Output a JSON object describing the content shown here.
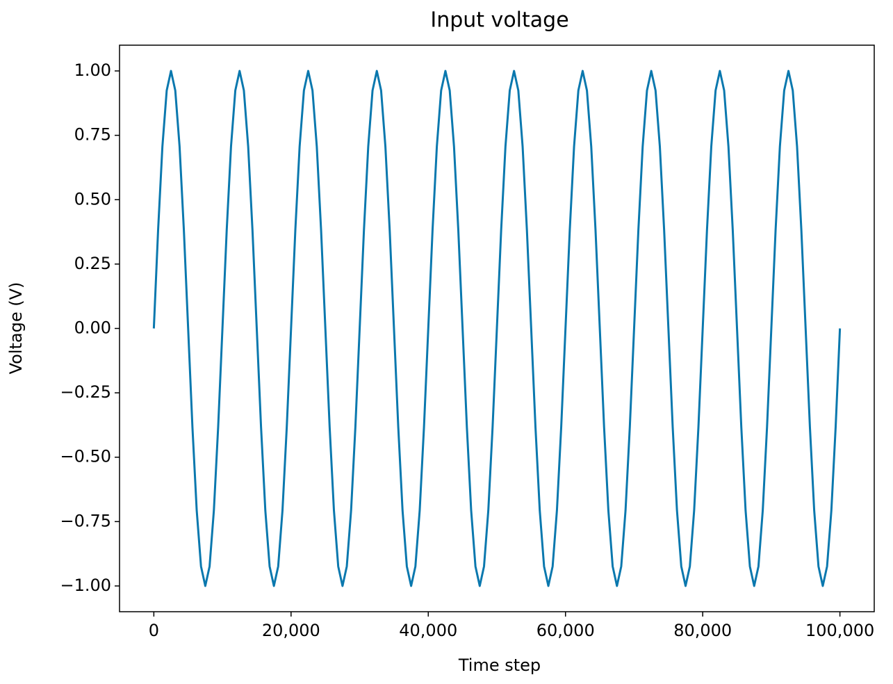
{
  "chart_data": {
    "type": "line",
    "title": "Input voltage",
    "x_label": "Time step",
    "y_label": "Voltage (V)",
    "color": "#0a78ae",
    "x": [
      0,
      625,
      1250,
      1875,
      2500,
      3125,
      3750,
      4375,
      5000,
      5625,
      6250,
      6875,
      7500,
      8125,
      8750,
      9375,
      10000,
      10625,
      11250,
      11875,
      12500,
      13125,
      13750,
      14375,
      15000,
      15625,
      16250,
      16875,
      17500,
      18125,
      18750,
      19375,
      20000,
      20625,
      21250,
      21875,
      22500,
      23125,
      23750,
      24375,
      25000,
      25625,
      26250,
      26875,
      27500,
      28125,
      28750,
      29375,
      30000,
      30625,
      31250,
      31875,
      32500,
      33125,
      33750,
      34375,
      35000,
      35625,
      36250,
      36875,
      37500,
      38125,
      38750,
      39375,
      40000,
      40625,
      41250,
      41875,
      42500,
      43125,
      43750,
      44375,
      45000,
      45625,
      46250,
      46875,
      47500,
      48125,
      48750,
      49375,
      50000,
      50625,
      51250,
      51875,
      52500,
      53125,
      53750,
      54375,
      55000,
      55625,
      56250,
      56875,
      57500,
      58125,
      58750,
      59375,
      60000,
      60625,
      61250,
      61875,
      62500,
      63125,
      63750,
      64375,
      65000,
      65625,
      66250,
      66875,
      67500,
      68125,
      68750,
      69375,
      70000,
      70625,
      71250,
      71875,
      72500,
      73125,
      73750,
      74375,
      75000,
      75625,
      76250,
      76875,
      77500,
      78125,
      78750,
      79375,
      80000,
      80625,
      81250,
      81875,
      82500,
      83125,
      83750,
      84375,
      85000,
      85625,
      86250,
      86875,
      87500,
      88125,
      88750,
      89375,
      90000,
      90625,
      91250,
      91875,
      92500,
      93125,
      93750,
      94375,
      95000,
      95625,
      96250,
      96875,
      97500,
      98125,
      98750,
      99375,
      100000
    ],
    "values": [
      0,
      0.383,
      0.707,
      0.924,
      1,
      0.924,
      0.707,
      0.383,
      0,
      -0.383,
      -0.707,
      -0.924,
      -1,
      -0.924,
      -0.707,
      -0.383,
      0,
      0.383,
      0.707,
      0.924,
      1,
      0.924,
      0.707,
      0.383,
      0,
      -0.383,
      -0.707,
      -0.924,
      -1,
      -0.924,
      -0.707,
      -0.383,
      0,
      0.383,
      0.707,
      0.924,
      1,
      0.924,
      0.707,
      0.383,
      0,
      -0.383,
      -0.707,
      -0.924,
      -1,
      -0.924,
      -0.707,
      -0.383,
      0,
      0.383,
      0.707,
      0.924,
      1,
      0.924,
      0.707,
      0.383,
      0,
      -0.383,
      -0.707,
      -0.924,
      -1,
      -0.924,
      -0.707,
      -0.383,
      0,
      0.383,
      0.707,
      0.924,
      1,
      0.924,
      0.707,
      0.383,
      0,
      -0.383,
      -0.707,
      -0.924,
      -1,
      -0.924,
      -0.707,
      -0.383,
      0,
      0.383,
      0.707,
      0.924,
      1,
      0.924,
      0.707,
      0.383,
      0,
      -0.383,
      -0.707,
      -0.924,
      -1,
      -0.924,
      -0.707,
      -0.383,
      0,
      0.383,
      0.707,
      0.924,
      1,
      0.924,
      0.707,
      0.383,
      0,
      -0.383,
      -0.707,
      -0.924,
      -1,
      -0.924,
      -0.707,
      -0.383,
      0,
      0.383,
      0.707,
      0.924,
      1,
      0.924,
      0.707,
      0.383,
      0,
      -0.383,
      -0.707,
      -0.924,
      -1,
      -0.924,
      -0.707,
      -0.383,
      0,
      0.383,
      0.707,
      0.924,
      1,
      0.924,
      0.707,
      0.383,
      0,
      -0.383,
      -0.707,
      -0.924,
      -1,
      -0.924,
      -0.707,
      -0.383,
      0,
      0.383,
      0.707,
      0.924,
      1,
      0.924,
      0.707,
      0.383,
      0,
      -0.383,
      -0.707,
      -0.924,
      -1,
      -0.924,
      -0.707,
      -0.383,
      0
    ],
    "xlim": [
      -5000,
      105000
    ],
    "xticks": [
      0,
      {
        "value": 20000,
        "label": "20,000"
      },
      {
        "value": 40000,
        "label": "40,000"
      },
      {
        "value": 60000,
        "label": "60,000"
      },
      {
        "value": 80000,
        "label": "80,000"
      },
      {
        "value": 100000,
        "label": "100,000"
      }
    ],
    "ylim": [
      -1.1,
      1.1
    ],
    "yticks": [
      {
        "value": -1,
        "label": "−1.00"
      },
      {
        "value": -0.75,
        "label": "−0.75"
      },
      {
        "value": -0.5,
        "label": "−0.50"
      },
      {
        "value": -0.25,
        "label": "−0.25"
      },
      {
        "value": 0,
        "label": "0.00"
      },
      {
        "value": 0.25,
        "label": "0.25"
      },
      {
        "value": 0.5,
        "label": "0.50"
      },
      {
        "value": 0.75,
        "label": "0.75"
      },
      {
        "value": 1,
        "label": "1.00"
      }
    ],
    "grid": false
  }
}
